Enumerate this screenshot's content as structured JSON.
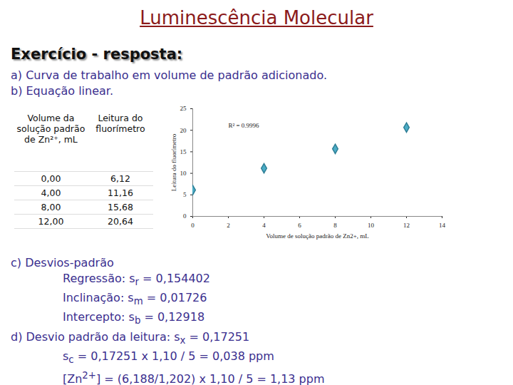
{
  "title": "Luminescência Molecular",
  "heading": "Exercício - resposta:",
  "intro": [
    "a) Curva de trabalho em volume de padrão adicionado.",
    "b) Equação linear."
  ],
  "table": {
    "header": [
      "Volume da solução padrão de Zn²⁺, mL",
      "Leitura do fluorímetro"
    ],
    "rows": [
      [
        "0,00",
        "6,12"
      ],
      [
        "4,00",
        "11,16"
      ],
      [
        "8,00",
        "15,68"
      ],
      [
        "12,00",
        "20,64"
      ]
    ]
  },
  "chart_data": {
    "type": "scatter",
    "x": [
      0,
      4,
      8,
      12
    ],
    "values": [
      6.12,
      11.16,
      15.68,
      20.64
    ],
    "xlabel": "Volume de solução padrão de Zn2+, mL",
    "ylabel": "Leitura do fluorímetro",
    "xlim": [
      0,
      14
    ],
    "xticks": [
      0,
      2,
      4,
      6,
      8,
      10,
      12,
      14
    ],
    "ylim": [
      0,
      25
    ],
    "yticks": [
      0,
      5,
      10,
      15,
      20,
      25
    ],
    "color": "#4bacc6",
    "marker": "diamond",
    "grid": false,
    "annotation": "R² = 0.9996"
  },
  "sections": [
    {
      "heading": [
        "c) Desvios-padrão"
      ],
      "items": [
        [
          "Regressão: s",
          {
            "sub": "r"
          },
          " = 0,154402"
        ],
        [
          "Inclinação: s",
          {
            "sub": "m"
          },
          " = 0,01726"
        ],
        [
          "Intercepto: s",
          {
            "sub": "b"
          },
          " = 0,12918"
        ]
      ]
    },
    {
      "heading": [
        "d) Desvio padrão da leitura: s",
        {
          "sub": "x"
        },
        " = 0,17251"
      ],
      "items": [
        [
          "s",
          {
            "sub": "c"
          },
          " = 0,17251 x 1,10 / 5 = 0,038 ppm"
        ],
        [
          "[Zn",
          {
            "sup": "2+"
          },
          "] = (6,188/1,202) x 1,10 / 5 = 1,13 ppm"
        ]
      ]
    }
  ]
}
